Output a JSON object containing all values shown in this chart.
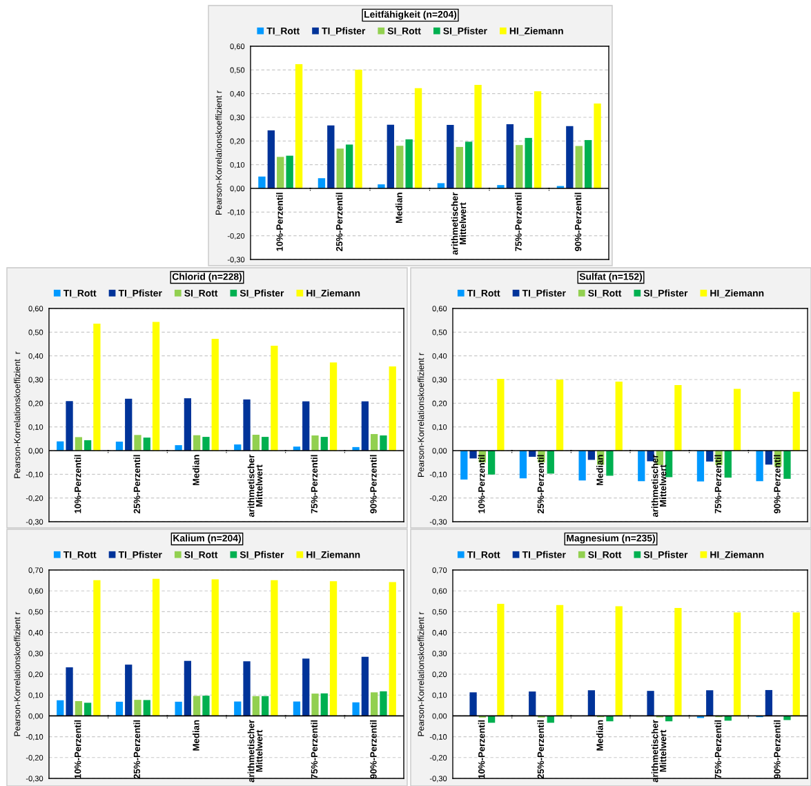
{
  "chart_data": [
    {
      "type": "bar",
      "title": "Leitfähigkeit (n=204)",
      "ylabel": "Pearson-Korrelationskoeffizient r",
      "legend": "top",
      "grid": "y",
      "categories": [
        "10%-Perzentil",
        "25%-Perzentil",
        "Median",
        "arithmetischer\nMittelwert",
        "75%-Perzentil",
        "90%-Perzentil"
      ],
      "ylim": [
        -0.3,
        0.6
      ],
      "yticks": [
        {
          "value": -0.3,
          "label": "-0,30"
        },
        {
          "value": -0.2,
          "label": "-0,20"
        },
        {
          "value": -0.1,
          "label": "-0,10"
        },
        {
          "value": 0,
          "label": "0,00"
        },
        {
          "value": 0.1,
          "label": "0,10"
        },
        {
          "value": 0.2,
          "label": "0,20"
        },
        {
          "value": 0.3,
          "label": "0,30"
        },
        {
          "value": 0.4,
          "label": "0,40"
        },
        {
          "value": 0.5,
          "label": "0,50"
        },
        {
          "value": 0.6,
          "label": "0,60"
        }
      ],
      "series": [
        {
          "name": "TI_Rott",
          "color": "#0099ff",
          "values": [
            0.05,
            0.043,
            0.017,
            0.022,
            0.014,
            0.01
          ]
        },
        {
          "name": "TI_Pfister",
          "color": "#003399",
          "values": [
            0.245,
            0.266,
            0.269,
            0.268,
            0.271,
            0.263
          ]
        },
        {
          "name": "SI_Rott",
          "color": "#92d050",
          "values": [
            0.133,
            0.168,
            0.18,
            0.175,
            0.183,
            0.179
          ]
        },
        {
          "name": "SI_Pfister",
          "color": "#00b050",
          "values": [
            0.138,
            0.185,
            0.207,
            0.197,
            0.213,
            0.204
          ]
        },
        {
          "name": "HI_Ziemann",
          "color": "#ffff00",
          "values": [
            0.524,
            0.501,
            0.423,
            0.437,
            0.41,
            0.358
          ]
        }
      ]
    },
    {
      "type": "bar",
      "title": "Chlorid (n=228)",
      "ylabel": "Pearson-Korrelationskoeffizient  r",
      "legend": "top",
      "grid": "y",
      "categories": [
        "10%-Perzentil",
        "25%-Perzentil",
        "Median",
        "arithmetischer\nMittelwert",
        "75%-Perzentil",
        "90%-Perzentil"
      ],
      "ylim": [
        -0.3,
        0.6
      ],
      "yticks": [
        {
          "value": -0.3,
          "label": "-0,30"
        },
        {
          "value": -0.2,
          "label": "-0,20"
        },
        {
          "value": -0.1,
          "label": "-0,10"
        },
        {
          "value": 0,
          "label": "0,00"
        },
        {
          "value": 0.1,
          "label": "0,10"
        },
        {
          "value": 0.2,
          "label": "0,20"
        },
        {
          "value": 0.3,
          "label": "0,30"
        },
        {
          "value": 0.4,
          "label": "0,40"
        },
        {
          "value": 0.5,
          "label": "0,50"
        },
        {
          "value": 0.6,
          "label": "0,60"
        }
      ],
      "series": [
        {
          "name": "TI_Rott",
          "color": "#0099ff",
          "values": [
            0.039,
            0.038,
            0.023,
            0.026,
            0.017,
            0.015
          ]
        },
        {
          "name": "TI_Pfister",
          "color": "#003399",
          "values": [
            0.209,
            0.219,
            0.221,
            0.216,
            0.208,
            0.208
          ]
        },
        {
          "name": "SI_Rott",
          "color": "#92d050",
          "values": [
            0.057,
            0.066,
            0.065,
            0.067,
            0.064,
            0.07
          ]
        },
        {
          "name": "SI_Pfister",
          "color": "#00b050",
          "values": [
            0.044,
            0.055,
            0.058,
            0.058,
            0.058,
            0.064
          ]
        },
        {
          "name": "HI_Ziemann",
          "color": "#ffff00",
          "values": [
            0.536,
            0.543,
            0.472,
            0.443,
            0.372,
            0.355
          ]
        }
      ]
    },
    {
      "type": "bar",
      "title": "Sulfat (n=152)",
      "ylabel": "Pearson-Korrelationskoeffizient r",
      "legend": "top",
      "grid": "y",
      "categories": [
        "10%-Perzentil",
        "25%-Perzentil",
        "Median",
        "arithmetischer\nMittelwert",
        "75%-Perzentil",
        "90%-Perzentil"
      ],
      "ylim": [
        -0.3,
        0.6
      ],
      "yticks": [
        {
          "value": -0.3,
          "label": "-0,30"
        },
        {
          "value": -0.2,
          "label": "-0,20"
        },
        {
          "value": -0.1,
          "label": "-0,10"
        },
        {
          "value": 0,
          "label": "0,00"
        },
        {
          "value": 0.1,
          "label": "0,10"
        },
        {
          "value": 0.2,
          "label": "0,20"
        },
        {
          "value": 0.3,
          "label": "0,30"
        },
        {
          "value": 0.4,
          "label": "0,40"
        },
        {
          "value": 0.5,
          "label": "0,50"
        },
        {
          "value": 0.6,
          "label": "0,60"
        }
      ],
      "series": [
        {
          "name": "TI_Rott",
          "color": "#0099ff",
          "values": [
            -0.122,
            -0.117,
            -0.126,
            -0.129,
            -0.13,
            -0.129
          ]
        },
        {
          "name": "TI_Pfister",
          "color": "#003399",
          "values": [
            -0.033,
            -0.026,
            -0.039,
            -0.045,
            -0.046,
            -0.059
          ]
        },
        {
          "name": "SI_Rott",
          "color": "#92d050",
          "values": [
            -0.05,
            -0.05,
            -0.06,
            -0.061,
            -0.061,
            -0.068
          ]
        },
        {
          "name": "SI_Pfister",
          "color": "#00b050",
          "values": [
            -0.101,
            -0.097,
            -0.106,
            -0.112,
            -0.114,
            -0.119
          ]
        },
        {
          "name": "HI_Ziemann",
          "color": "#ffff00",
          "values": [
            0.303,
            0.3,
            0.291,
            0.277,
            0.261,
            0.248
          ]
        }
      ]
    },
    {
      "type": "bar",
      "title": "Kalium (n=204)",
      "ylabel": "Pearson-Korrelationskoeffizient r",
      "legend": "top",
      "grid": "y",
      "categories": [
        "10%-Perzentil",
        "25%-Perzentil",
        "Median",
        "arithmetischer\nMittelwert",
        "75%-Perzentil",
        "90%-Perzentil"
      ],
      "ylim": [
        -0.3,
        0.7
      ],
      "yticks": [
        {
          "value": -0.3,
          "label": "-0,30"
        },
        {
          "value": -0.2,
          "label": "-0,20"
        },
        {
          "value": -0.1,
          "label": "-0,10"
        },
        {
          "value": 0,
          "label": "0,00"
        },
        {
          "value": 0.1,
          "label": "0,10"
        },
        {
          "value": 0.2,
          "label": "0,20"
        },
        {
          "value": 0.3,
          "label": "0,30"
        },
        {
          "value": 0.4,
          "label": "0,40"
        },
        {
          "value": 0.5,
          "label": "0,50"
        },
        {
          "value": 0.6,
          "label": "0,60"
        },
        {
          "value": 0.7,
          "label": "0,70"
        }
      ],
      "series": [
        {
          "name": "TI_Rott",
          "color": "#0099ff",
          "values": [
            0.075,
            0.068,
            0.068,
            0.069,
            0.069,
            0.065
          ]
        },
        {
          "name": "TI_Pfister",
          "color": "#003399",
          "values": [
            0.233,
            0.246,
            0.264,
            0.262,
            0.275,
            0.284
          ]
        },
        {
          "name": "SI_Rott",
          "color": "#92d050",
          "values": [
            0.071,
            0.077,
            0.096,
            0.095,
            0.107,
            0.113
          ]
        },
        {
          "name": "SI_Pfister",
          "color": "#00b050",
          "values": [
            0.063,
            0.076,
            0.097,
            0.095,
            0.108,
            0.118
          ]
        },
        {
          "name": "HI_Ziemann",
          "color": "#ffff00",
          "values": [
            0.651,
            0.658,
            0.655,
            0.651,
            0.646,
            0.642
          ]
        }
      ]
    },
    {
      "type": "bar",
      "title": "Magnesium (n=235)",
      "ylabel": "Pearson-Korrelationskoeffizient r",
      "legend": "top",
      "grid": "y",
      "categories": [
        "10%-Perzentil",
        "25%-Perzentil",
        "Median",
        "arithmetischer\nMittelwert",
        "75%-Perzentil",
        "90%-Perzentil"
      ],
      "ylim": [
        -0.3,
        0.7
      ],
      "yticks": [
        {
          "value": -0.3,
          "label": "-0,30"
        },
        {
          "value": -0.2,
          "label": "-0,20"
        },
        {
          "value": -0.1,
          "label": "-0,10"
        },
        {
          "value": 0,
          "label": "0,00"
        },
        {
          "value": 0.1,
          "label": "0,10"
        },
        {
          "value": 0.2,
          "label": "0,20"
        },
        {
          "value": 0.3,
          "label": "0,30"
        },
        {
          "value": 0.4,
          "label": "0,40"
        },
        {
          "value": 0.5,
          "label": "0,50"
        },
        {
          "value": 0.6,
          "label": "0,60"
        },
        {
          "value": 0.7,
          "label": "0,70"
        }
      ],
      "series": [
        {
          "name": "TI_Rott",
          "color": "#0099ff",
          "values": [
            0.0,
            null,
            null,
            null,
            -0.01,
            -0.006
          ]
        },
        {
          "name": "TI_Pfister",
          "color": "#003399",
          "values": [
            0.113,
            0.117,
            0.123,
            0.12,
            0.123,
            0.124
          ]
        },
        {
          "name": "SI_Rott",
          "color": "#92d050",
          "values": [
            -0.008,
            -0.008,
            -0.006,
            -0.007,
            -0.006,
            null
          ]
        },
        {
          "name": "SI_Pfister",
          "color": "#00b050",
          "values": [
            -0.033,
            -0.033,
            -0.026,
            -0.026,
            -0.023,
            -0.02
          ]
        },
        {
          "name": "HI_Ziemann",
          "color": "#ffff00",
          "values": [
            0.538,
            0.532,
            0.526,
            0.518,
            0.496,
            0.496
          ]
        }
      ]
    }
  ]
}
